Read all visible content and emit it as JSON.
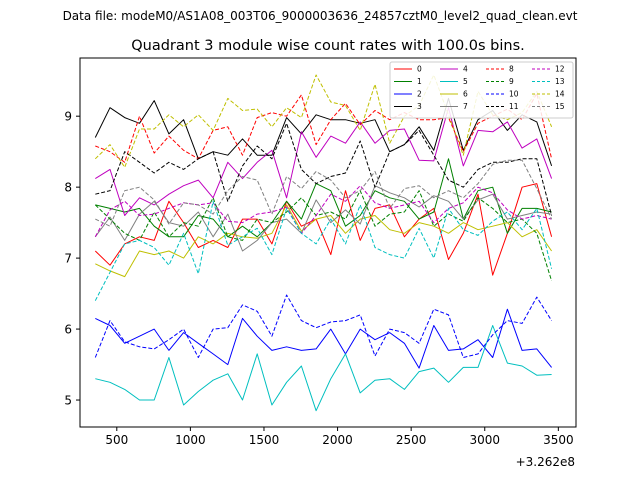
{
  "chart_data": {
    "type": "line",
    "suptitle": "Data file: modeM0/AS1A08_003T06_9000003636_24857cztM0_level2_quad_clean.evt",
    "title": "Quadrant 3 module wise count rates with 100.0s bins.",
    "xlabel": "",
    "ylabel": "",
    "x_offset_label": "+3.262e8",
    "xlim": [
      250,
      3620
    ],
    "ylim": [
      4.62,
      9.82
    ],
    "xticks": [
      500,
      1000,
      1500,
      2000,
      2500,
      3000,
      3500
    ],
    "xtick_labels": [
      "500",
      "1000",
      "1500",
      "2000",
      "2500",
      "3000",
      "3500"
    ],
    "yticks": [
      5,
      6,
      7,
      8,
      9
    ],
    "ytick_labels": [
      "5",
      "6",
      "7",
      "8",
      "9"
    ],
    "grid": false,
    "legend_position": "top-right",
    "x": [
      354,
      454,
      554,
      654,
      754,
      854,
      954,
      1054,
      1154,
      1254,
      1354,
      1454,
      1554,
      1654,
      1754,
      1854,
      1954,
      2054,
      2154,
      2254,
      2354,
      2454,
      2554,
      2654,
      2754,
      2854,
      2954,
      3054,
      3154,
      3254,
      3354,
      3454
    ],
    "series": [
      {
        "name": "0",
        "color": "#ff0000",
        "dash": "solid",
        "values": [
          7.1,
          6.9,
          7.2,
          7.3,
          7.25,
          7.8,
          7.5,
          7.15,
          7.25,
          7.15,
          7.55,
          7.55,
          7.2,
          7.8,
          7.45,
          7.55,
          7.05,
          7.95,
          7.25,
          7.7,
          7.75,
          7.3,
          7.55,
          7.7,
          6.98,
          7.35,
          7.9,
          6.76,
          7.35,
          8.0,
          8.05,
          7.3
        ]
      },
      {
        "name": "1",
        "color": "#008000",
        "dash": "solid",
        "values": [
          7.75,
          7.7,
          7.65,
          7.7,
          7.45,
          7.3,
          7.3,
          7.6,
          7.55,
          7.3,
          7.45,
          7.3,
          7.5,
          7.8,
          7.55,
          8.05,
          7.95,
          7.45,
          7.6,
          7.95,
          7.85,
          7.8,
          7.55,
          7.65,
          8.4,
          7.55,
          7.95,
          8.0,
          7.35,
          7.7,
          7.7,
          7.65
        ]
      },
      {
        "name": "2",
        "color": "#0000ff",
        "dash": "solid",
        "values": [
          6.15,
          6.05,
          5.8,
          5.9,
          6.0,
          5.7,
          5.95,
          5.8,
          5.65,
          5.5,
          6.15,
          5.9,
          5.7,
          5.75,
          5.7,
          5.72,
          6.0,
          5.65,
          6.0,
          5.85,
          5.95,
          5.8,
          5.45,
          6.05,
          5.7,
          5.72,
          5.85,
          5.6,
          6.28,
          5.7,
          5.72,
          5.46
        ]
      },
      {
        "name": "3",
        "color": "#000000",
        "dash": "solid",
        "values": [
          8.7,
          9.12,
          8.98,
          8.9,
          9.22,
          8.75,
          8.95,
          8.4,
          8.5,
          8.45,
          8.68,
          8.45,
          8.45,
          8.98,
          8.75,
          9.02,
          8.95,
          8.95,
          8.9,
          8.95,
          8.5,
          8.6,
          8.85,
          8.52,
          9.25,
          8.52,
          8.95,
          9.08,
          8.8,
          9.02,
          8.92,
          8.3
        ]
      },
      {
        "name": "4",
        "color": "#bf00bf",
        "dash": "solid",
        "values": [
          8.12,
          8.25,
          7.6,
          7.85,
          7.75,
          7.9,
          8.02,
          8.1,
          7.85,
          8.35,
          8.12,
          8.35,
          8.52,
          7.85,
          8.78,
          8.42,
          8.72,
          8.62,
          8.92,
          8.62,
          8.8,
          8.82,
          8.38,
          8.37,
          9.12,
          8.3,
          8.8,
          8.78,
          8.92,
          8.55,
          8.68,
          8.12
        ]
      },
      {
        "name": "5",
        "color": "#00bfbf",
        "dash": "solid",
        "values": [
          5.3,
          5.25,
          5.15,
          5.0,
          5.0,
          5.6,
          4.93,
          5.12,
          5.28,
          5.37,
          5.0,
          5.65,
          4.93,
          5.25,
          5.48,
          4.85,
          5.3,
          5.65,
          5.1,
          5.28,
          5.3,
          5.15,
          5.4,
          5.45,
          5.25,
          5.46,
          5.46,
          6.05,
          5.52,
          5.48,
          5.35,
          5.36
        ]
      },
      {
        "name": "6",
        "color": "#bfbf00",
        "dash": "solid",
        "values": [
          6.92,
          6.82,
          6.74,
          7.1,
          7.05,
          7.1,
          7.0,
          7.3,
          7.2,
          7.35,
          7.3,
          7.28,
          7.35,
          7.75,
          7.38,
          7.55,
          7.6,
          7.35,
          7.55,
          7.6,
          7.4,
          7.35,
          7.5,
          7.45,
          7.35,
          7.5,
          7.4,
          7.45,
          7.5,
          7.3,
          7.4,
          7.1
        ]
      },
      {
        "name": "7",
        "color": "#808080",
        "dash": "solid",
        "values": [
          7.3,
          7.58,
          7.25,
          7.62,
          7.8,
          7.5,
          7.45,
          7.65,
          7.3,
          7.62,
          7.1,
          7.25,
          7.5,
          7.55,
          7.35,
          7.82,
          7.5,
          7.68,
          7.48,
          8.02,
          7.92,
          7.85,
          7.72,
          7.88,
          7.8,
          7.55,
          7.82,
          7.9,
          7.55,
          7.6,
          7.65,
          7.62
        ]
      },
      {
        "name": "8",
        "color": "#ff0000",
        "dash": "dashed",
        "values": [
          8.58,
          8.5,
          8.35,
          9.0,
          8.48,
          8.72,
          8.52,
          8.4,
          8.8,
          8.85,
          8.45,
          8.98,
          9.05,
          9.0,
          9.3,
          8.6,
          8.95,
          9.18,
          8.88,
          9.08,
          8.95,
          9.05,
          8.95,
          8.95,
          8.98,
          8.5,
          8.9,
          9.0,
          9.1,
          8.95,
          9.32,
          8.4
        ]
      },
      {
        "name": "9",
        "color": "#008000",
        "dash": "dashed",
        "values": [
          7.75,
          7.55,
          7.35,
          7.25,
          7.65,
          7.3,
          7.5,
          7.45,
          7.85,
          7.3,
          7.25,
          7.55,
          7.5,
          7.65,
          7.85,
          7.6,
          7.65,
          7.55,
          7.95,
          7.45,
          7.62,
          7.65,
          7.95,
          7.45,
          7.62,
          7.52,
          7.85,
          7.7,
          7.5,
          7.55,
          7.35,
          6.68
        ]
      },
      {
        "name": "10",
        "color": "#0000ff",
        "dash": "dashed",
        "values": [
          5.6,
          6.12,
          5.82,
          5.75,
          5.72,
          5.85,
          6.0,
          5.6,
          6.0,
          6.02,
          6.34,
          6.25,
          5.9,
          6.48,
          6.12,
          6.02,
          6.1,
          6.12,
          6.2,
          5.62,
          6.0,
          5.95,
          5.8,
          6.28,
          6.2,
          5.6,
          5.65,
          5.92,
          6.12,
          6.08,
          6.45,
          6.12
        ]
      },
      {
        "name": "11",
        "color": "#000000",
        "dash": "dashed",
        "values": [
          7.9,
          7.95,
          8.5,
          8.35,
          8.2,
          8.35,
          8.25,
          8.4,
          8.5,
          7.8,
          8.3,
          8.58,
          8.4,
          8.9,
          8.25,
          8.05,
          8.15,
          8.2,
          8.65,
          8.0,
          8.5,
          8.6,
          8.8,
          8.45,
          8.1,
          8.0,
          8.25,
          8.35,
          8.35,
          8.4,
          8.4,
          7.6
        ]
      },
      {
        "name": "12",
        "color": "#bf00bf",
        "dash": "dashed",
        "values": [
          7.3,
          7.68,
          7.8,
          7.6,
          7.62,
          7.7,
          7.78,
          7.75,
          7.78,
          7.52,
          7.5,
          7.62,
          7.65,
          7.72,
          7.35,
          7.6,
          7.9,
          7.8,
          8.02,
          7.78,
          7.7,
          7.75,
          7.8,
          7.5,
          7.7,
          7.78,
          8.0,
          7.92,
          7.68,
          7.55,
          7.6,
          7.55
        ]
      },
      {
        "name": "13",
        "color": "#00bfbf",
        "dash": "dashed",
        "values": [
          6.4,
          6.8,
          7.2,
          7.25,
          7.15,
          6.9,
          7.35,
          6.78,
          7.8,
          7.18,
          7.3,
          7.42,
          7.05,
          7.7,
          7.35,
          7.2,
          7.55,
          7.2,
          7.75,
          7.15,
          7.05,
          7.0,
          7.42,
          7.0,
          7.7,
          7.4,
          7.32,
          7.52,
          7.65,
          7.4,
          7.7,
          6.85
        ]
      },
      {
        "name": "14",
        "color": "#bfbf00",
        "dash": "dashed",
        "values": [
          8.4,
          8.6,
          8.28,
          8.82,
          8.82,
          9.02,
          8.85,
          9.02,
          8.8,
          9.25,
          9.08,
          9.1,
          8.85,
          9.12,
          8.98,
          9.58,
          9.2,
          9.15,
          8.8,
          9.45,
          8.62,
          9.0,
          9.15,
          9.58,
          9.02,
          8.45,
          9.35,
          9.02,
          8.95,
          9.05,
          9.35,
          8.85
        ]
      },
      {
        "name": "15",
        "color": "#808080",
        "dash": "dashed",
        "values": [
          7.55,
          7.45,
          7.95,
          8.0,
          7.82,
          7.48,
          7.78,
          7.75,
          7.62,
          7.95,
          8.15,
          8.1,
          7.62,
          8.15,
          7.98,
          8.22,
          8.1,
          7.85,
          7.95,
          8.22,
          7.7,
          7.98,
          8.02,
          7.85,
          7.95,
          7.85,
          8.05,
          8.32,
          8.38,
          8.38,
          7.98,
          7.55
        ]
      }
    ]
  }
}
